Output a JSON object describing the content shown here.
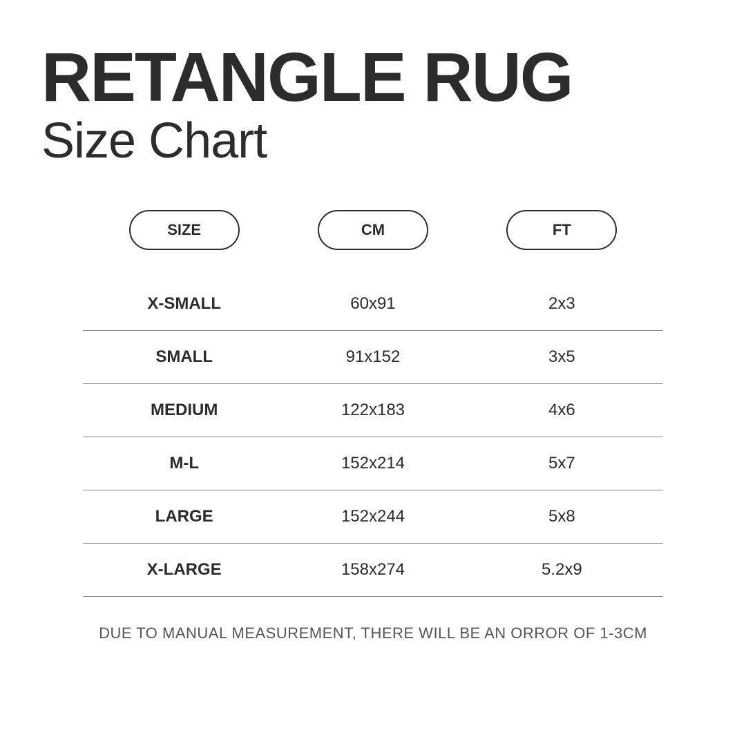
{
  "header": {
    "title": "RETANGLE RUG",
    "subtitle": "Size Chart"
  },
  "size_chart": {
    "type": "table",
    "columns": [
      "SIZE",
      "CM",
      "FT"
    ],
    "rows": [
      {
        "size": "X-SMALL",
        "cm": "60x91",
        "ft": "2x3"
      },
      {
        "size": "SMALL",
        "cm": "91x152",
        "ft": "3x5"
      },
      {
        "size": "MEDIUM",
        "cm": "122x183",
        "ft": "4x6"
      },
      {
        "size": "M-L",
        "cm": "152x214",
        "ft": "5x7"
      },
      {
        "size": "LARGE",
        "cm": "152x244",
        "ft": "5x8"
      },
      {
        "size": "X-LARGE",
        "cm": "158x274",
        "ft": "5.2x9"
      }
    ],
    "pill_border_color": "#2c2c2c",
    "row_divider_color": "#888888",
    "header_fontsize": 22,
    "header_fontweight": 800,
    "cell_fontsize": 24,
    "size_cell_fontweight": 800,
    "background_color": "#ffffff",
    "text_color": "#2c2c2c"
  },
  "footnote": "DUE TO MANUAL MEASUREMENT, THERE WILL BE AN ORROR OF 1-3CM",
  "style": {
    "title_fontsize": 100,
    "title_fontweight": 800,
    "subtitle_fontsize": 72,
    "subtitle_fontweight": 400,
    "footnote_fontsize": 22,
    "footnote_color": "#555555"
  }
}
